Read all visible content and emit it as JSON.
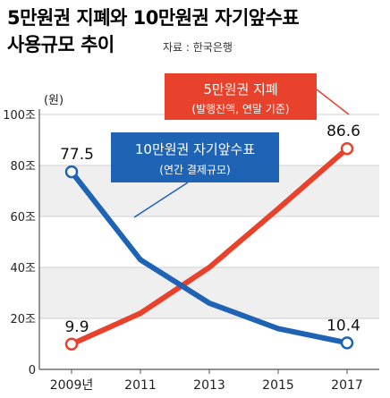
{
  "header": {
    "title_line1": "5만원권 지폐와 10만원권 자기앞수표",
    "title_line2": "사용규모 추이",
    "source": "자료 : 한국은행"
  },
  "chart_data": {
    "type": "line",
    "unit_label": "(원)",
    "x": [
      2009,
      2011,
      2013,
      2015,
      2017
    ],
    "x_tick_labels": [
      "2009년",
      "2011",
      "2013",
      "2015",
      "2017"
    ],
    "ylim": [
      0,
      100
    ],
    "y_ticks": [
      0,
      20,
      40,
      60,
      80,
      100
    ],
    "y_tick_labels": [
      "0",
      "20조",
      "40조",
      "60조",
      "80조",
      "100조"
    ],
    "grid": "horizontal-bands",
    "series": [
      {
        "name": "5만원권 지폐",
        "subtitle": "(발행잔액, 연말 기준)",
        "color": "#e8412c",
        "values": [
          9.9,
          22,
          40,
          63,
          86.6
        ],
        "end_labels": [
          "9.9",
          "86.6"
        ]
      },
      {
        "name": "10만원권 자기앞수표",
        "subtitle": "(연간 결제규모)",
        "color": "#1f63b4",
        "values": [
          77.5,
          43,
          26,
          16,
          10.4
        ],
        "end_labels": [
          "77.5",
          "10.4"
        ]
      }
    ]
  }
}
